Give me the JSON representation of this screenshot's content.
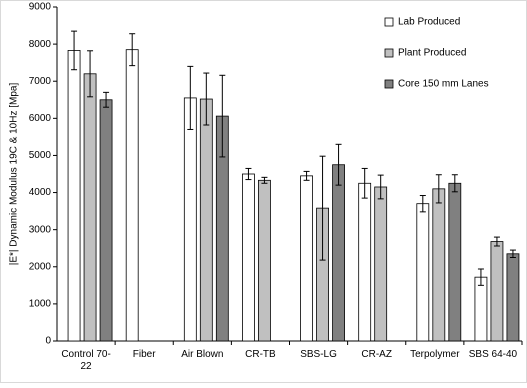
{
  "chart_data": {
    "type": "bar",
    "y_label": "|E*| Dynamic Modulus 19C & 10Hz [Mpa]",
    "categories": [
      "Control 70-22",
      "Fiber",
      "Air Blown",
      "CR-TB",
      "SBS-LG",
      "CR-AZ",
      "Terpolymer",
      "SBS 64-40"
    ],
    "series": [
      {
        "name": "Lab Produced",
        "color": "#ffffff",
        "values": [
          7830,
          7850,
          6550,
          4500,
          4450,
          4250,
          3700,
          1720
        ],
        "errors": [
          520,
          430,
          850,
          150,
          120,
          400,
          220,
          220
        ]
      },
      {
        "name": "Plant Produced",
        "color": "#c0c0c0",
        "values": [
          7200,
          null,
          6520,
          4330,
          3580,
          4150,
          4100,
          2680
        ],
        "errors": [
          620,
          null,
          700,
          80,
          1400,
          320,
          380,
          120
        ]
      },
      {
        "name": "Core 150 mm Lanes",
        "color": "#808080",
        "values": [
          6500,
          null,
          6060,
          null,
          4750,
          null,
          4250,
          2350
        ],
        "errors": [
          200,
          null,
          1100,
          null,
          550,
          null,
          230,
          100
        ]
      }
    ],
    "ylim": [
      0,
      9000
    ],
    "yticks": [
      0,
      1000,
      2000,
      3000,
      4000,
      5000,
      6000,
      7000,
      8000,
      9000
    ],
    "legend": "top-right"
  }
}
